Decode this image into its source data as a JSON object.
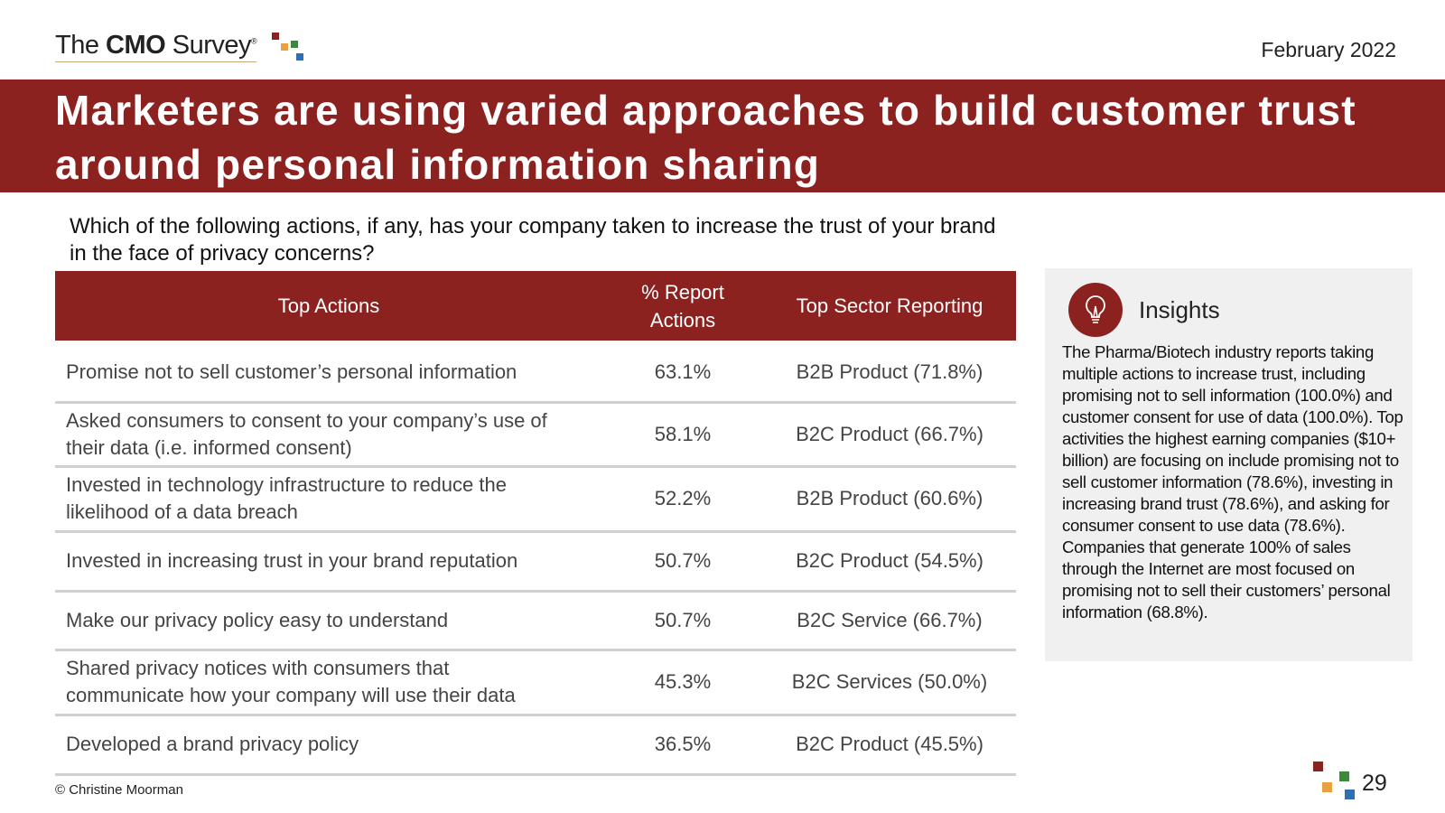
{
  "header": {
    "logo": {
      "the": "The",
      "cmo": "CMO",
      "survey": "Survey",
      "mark": "®"
    },
    "date": "February 2022",
    "title": "Marketers are using varied approaches to build customer trust around personal information sharing"
  },
  "question": "Which of the following actions, if any, has your company taken to increase the trust of your brand in the face of privacy concerns?",
  "table": {
    "columns": [
      "Top Actions",
      "% Report Actions",
      "Top Sector Reporting"
    ],
    "rows": [
      [
        "Promise not to sell customer’s personal information",
        "63.1%",
        "B2B Product (71.8%)"
      ],
      [
        "Asked consumers to consent to your company’s use of their data (i.e. informed consent)",
        "58.1%",
        "B2C Product (66.7%)"
      ],
      [
        "Invested in technology infrastructure to reduce the likelihood of a data breach",
        "52.2%",
        "B2B Product (60.6%)"
      ],
      [
        "Invested in increasing trust in your brand reputation",
        "50.7%",
        "B2C Product (54.5%)"
      ],
      [
        "Make our privacy policy easy to understand",
        "50.7%",
        "B2C Service (66.7%)"
      ],
      [
        "Shared privacy notices with consumers that communicate how your company will use their data",
        "45.3%",
        "B2C Services (50.0%)"
      ],
      [
        "Developed a brand privacy policy",
        "36.5%",
        "B2C Product (45.5%)"
      ]
    ]
  },
  "insights": {
    "title": "Insights",
    "text": "The Pharma/Biotech industry reports taking multiple actions to increase trust, including promising not to sell information (100.0%) and customer consent for use of data (100.0%). Top activities the highest earning companies ($10+ billion) are focusing on include promising not to sell customer information (78.6%), investing in increasing brand trust (78.6%), and asking for consumer consent to use data (78.6%). Companies that generate 100% of sales through the Internet are most focused on promising not to sell their customers’ personal information (68.8%)."
  },
  "footer": {
    "copyright": "© Christine Moorman",
    "page": "29"
  }
}
